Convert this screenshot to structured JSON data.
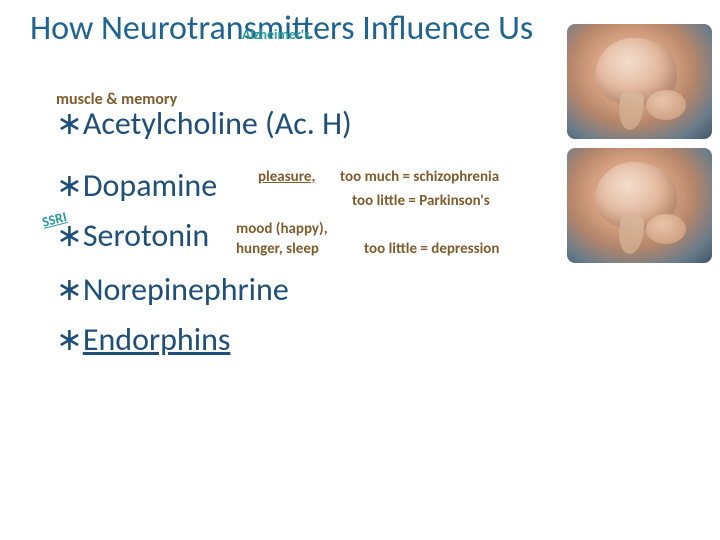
{
  "colors": {
    "title": "#1f6391",
    "accent": "#2e9a9a",
    "text": "#1f4e79",
    "annot": "#7f5c2e"
  },
  "title": "How Neurotransmitters Influence Us",
  "annotations": {
    "alzheimers": "Alzheimer's",
    "muscle_memory": "muscle & memory",
    "pleasure": "pleasure,",
    "schizo": "too much = schizophrenia",
    "parkinsons": "too little = Parkinson's",
    "ssri": "SSRI",
    "mood": "mood (happy),",
    "hunger_sleep": "hunger, sleep",
    "depression": "too little = depression"
  },
  "items": {
    "ach_full": "Acetylcholine (Ac. H)",
    "dopamine": "Dopamine",
    "serotonin": "Serotonin",
    "norepinephrine": "Norepinephrine",
    "endorphins": "Endorphins"
  },
  "bullet": "∗"
}
